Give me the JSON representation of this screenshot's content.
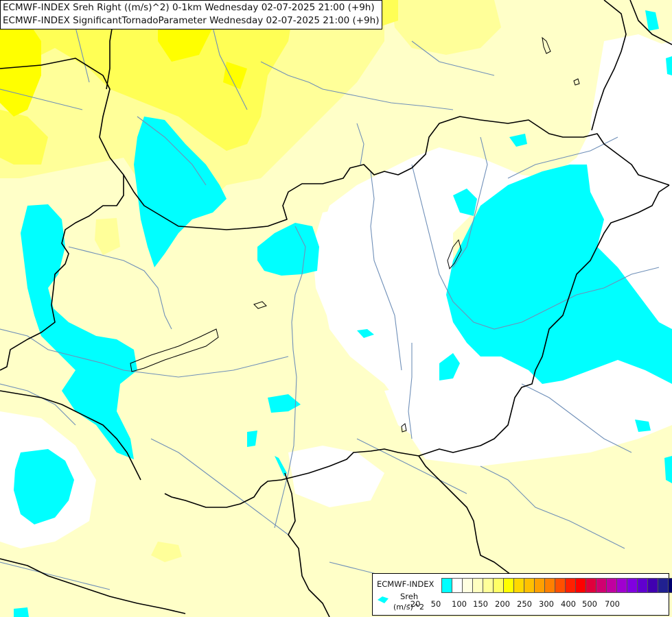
{
  "titles": {
    "line1": "ECMWF-INDEX Sreh Right ((m/s)^2) 0-1km Wednesday 02-07-2025 21:00 (+9h)",
    "line2": "ECMWF-INDEX SignificantTornadoParameter Wednesday 02-07-2025 21:00 (+9h)"
  },
  "legend": {
    "header": "ECMWF-INDEX",
    "variable": "Sreh",
    "units": "(m/s)^2",
    "colors": [
      "#00ffff",
      "#ffffff",
      "#ffffe0",
      "#ffffc0",
      "#ffff99",
      "#ffff66",
      "#ffff00",
      "#ffd800",
      "#ffc000",
      "#ffa000",
      "#ff8000",
      "#ff5000",
      "#ff2000",
      "#ff0000",
      "#e0003c",
      "#d00070",
      "#c000a0",
      "#a000d0",
      "#8000e0",
      "#6000d0",
      "#4000b0",
      "#202090",
      "#000070"
    ],
    "tick_labels": [
      "-20",
      "50",
      "100",
      "150",
      "200",
      "250",
      "300",
      "400",
      "500",
      "700"
    ]
  },
  "map": {
    "field_colors": {
      "background": "#ffffff",
      "level_light": "#ffffc8",
      "level_mid": "#ffff99",
      "level_yellow": "#ffff55",
      "level_strong": "#ffff00",
      "negative": "#00ffff"
    },
    "border_color": "#000000",
    "river_color": "#6f8fb8"
  }
}
